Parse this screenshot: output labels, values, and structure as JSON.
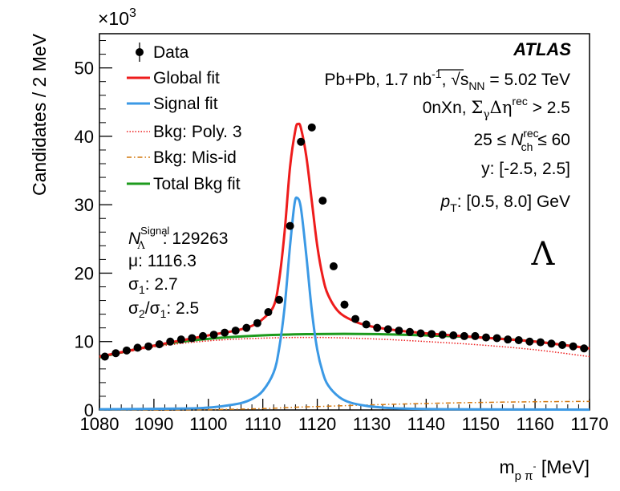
{
  "chart_data": {
    "type": "scatter",
    "title": "",
    "xlabel": "m",
    "xlabel_sub": "p π",
    "xlabel_sup": "-",
    "xlabel_unit": "[MeV]",
    "ylabel": "Candidates / 2 MeV",
    "y_multiplier": "×10",
    "y_multiplier_exp": "3",
    "xlim": [
      1080,
      1170
    ],
    "ylim": [
      0,
      55
    ],
    "xticks": [
      1080,
      1090,
      1100,
      1110,
      1120,
      1130,
      1140,
      1150,
      1160,
      1170
    ],
    "yticks": [
      0,
      10,
      20,
      30,
      40,
      50
    ],
    "series": [
      {
        "name": "Data",
        "kind": "points",
        "color": "#000000",
        "x": [
          1081,
          1083,
          1085,
          1087,
          1089,
          1091,
          1093,
          1095,
          1097,
          1099,
          1101,
          1103,
          1105,
          1107,
          1109,
          1111,
          1113,
          1115,
          1117,
          1119,
          1121,
          1123,
          1125,
          1127,
          1129,
          1131,
          1133,
          1135,
          1137,
          1139,
          1141,
          1143,
          1145,
          1147,
          1149,
          1151,
          1153,
          1155,
          1157,
          1159,
          1161,
          1163,
          1165,
          1167,
          1169
        ],
        "y": [
          7.8,
          8.3,
          8.7,
          9.1,
          9.3,
          9.6,
          10.0,
          10.3,
          10.5,
          10.8,
          11.0,
          11.3,
          11.6,
          12.0,
          12.7,
          14.3,
          16.1,
          26.9,
          39.2,
          41.3,
          30.6,
          21.0,
          15.4,
          13.3,
          12.5,
          12.0,
          11.8,
          11.6,
          11.4,
          11.2,
          11.1,
          11.0,
          10.9,
          10.8,
          10.8,
          10.6,
          10.5,
          10.3,
          10.2,
          10.0,
          9.9,
          9.7,
          9.5,
          9.3,
          9.0
        ]
      },
      {
        "name": "Global fit",
        "kind": "line",
        "color": "#ee1c1c",
        "x": [
          1080,
          1090,
          1100,
          1105,
          1108,
          1110,
          1112,
          1113,
          1114,
          1115,
          1116,
          1116.5,
          1117,
          1118,
          1119,
          1120,
          1121,
          1122,
          1124,
          1127,
          1130,
          1135,
          1140,
          1150,
          1160,
          1170
        ],
        "y": [
          7.8,
          9.4,
          10.9,
          11.6,
          12.3,
          13.3,
          15.2,
          19.0,
          26.0,
          35.5,
          41.0,
          41.8,
          41.2,
          37.0,
          30.5,
          24.0,
          19.5,
          16.8,
          14.3,
          12.9,
          12.2,
          11.6,
          11.2,
          10.6,
          10.0,
          9.0
        ]
      },
      {
        "name": "Signal fit",
        "kind": "line",
        "color": "#3b99e5",
        "x": [
          1080,
          1095,
          1100,
          1103,
          1106,
          1108,
          1110,
          1112,
          1113,
          1114,
          1115,
          1115.8,
          1116.3,
          1117,
          1118,
          1119,
          1120,
          1121,
          1122,
          1124,
          1126,
          1129,
          1132,
          1136,
          1145,
          1170
        ],
        "y": [
          0.1,
          0.2,
          0.35,
          0.6,
          1.0,
          1.6,
          2.8,
          5.5,
          9.0,
          15.0,
          24.0,
          30.0,
          31.0,
          29.5,
          22.5,
          14.5,
          8.8,
          5.5,
          3.6,
          1.9,
          1.1,
          0.6,
          0.35,
          0.2,
          0.1,
          0.05
        ]
      },
      {
        "name": "Bkg: Poly. 3",
        "kind": "line",
        "style": "dotted",
        "color": "#ee1c1c",
        "x": [
          1080,
          1090,
          1100,
          1110,
          1120,
          1130,
          1140,
          1150,
          1160,
          1170
        ],
        "y": [
          7.6,
          9.2,
          10.1,
          10.5,
          10.6,
          10.4,
          10.0,
          9.5,
          8.8,
          7.8
        ]
      },
      {
        "name": "Bkg: Mis-id",
        "kind": "line",
        "style": "dashdot",
        "color": "#d4780f",
        "x": [
          1080,
          1090,
          1100,
          1110,
          1116,
          1120,
          1130,
          1140,
          1150,
          1160,
          1170
        ],
        "y": [
          0.0,
          0.0,
          0.05,
          0.2,
          0.4,
          0.5,
          0.75,
          0.95,
          1.1,
          1.2,
          1.25
        ]
      },
      {
        "name": "Total Bkg fit",
        "kind": "line",
        "color": "#1d9b1d",
        "x": [
          1080,
          1090,
          1100,
          1110,
          1120,
          1130,
          1140,
          1150,
          1160,
          1170
        ],
        "y": [
          7.7,
          9.4,
          10.4,
          10.9,
          11.1,
          11.1,
          10.9,
          10.6,
          10.0,
          9.0
        ]
      }
    ],
    "legend_placement": "top-left",
    "annotations": {
      "experiment": "ATLAS",
      "line1_prefix": "Pb+Pb, 1.7 nb",
      "line1_sup": "-1",
      "line1_sep": ",",
      "line1_sqrt_s": "s",
      "line1_sqrt_sub": "NN",
      "line1_suffix": " = 5.02 TeV",
      "line2_prefix": "0nXn, ",
      "line2_sigma": "Σ",
      "line2_gamma": "γ",
      "line2_deta": "Δη",
      "line2_sup": "rec",
      "line2_suffix": " > 2.5",
      "line3_prefix": "25 ≤ ",
      "line3_N": "N",
      "line3_sup": "rec",
      "line3_sub": "ch",
      "line3_suffix": " ≤ 60",
      "line4": "y: [-2.5, 2.5]",
      "line5_p": "p",
      "line5_sub": "T",
      "line5_suffix": ": [0.5, 8.0] GeV",
      "particle": "Λ",
      "n_signal_N": "N",
      "n_signal_sup": "Signal",
      "n_signal_sub": "Λ",
      "n_signal_value": ": 129263",
      "mu": "μ: 1116.3",
      "sigma1_sym": "σ",
      "sigma1_sub": "1",
      "sigma1_value": ": 2.7",
      "ratio_sigma2": "σ",
      "ratio_sub2": "2",
      "ratio_slash": "/σ",
      "ratio_sub1": "1",
      "ratio_value": ": 2.5"
    }
  }
}
